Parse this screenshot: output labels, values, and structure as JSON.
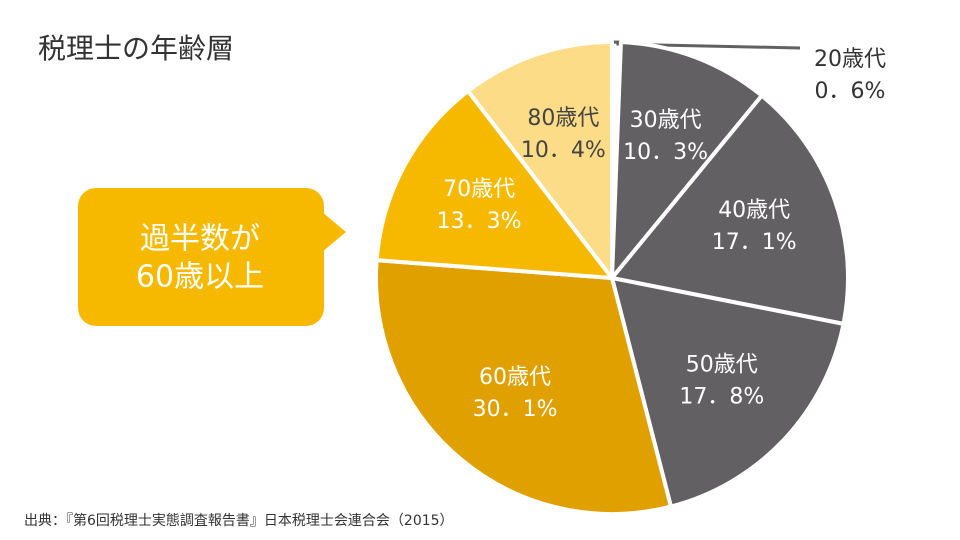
{
  "chart_data": {
    "type": "pie",
    "title": "税理士の年齢層",
    "categories": [
      "20歳代",
      "30歳代",
      "40歳代",
      "50歳代",
      "60歳代",
      "70歳代",
      "80歳代"
    ],
    "values": [
      0.6,
      10.3,
      17.1,
      17.8,
      30.1,
      13.3,
      10.4
    ],
    "value_labels": [
      "0．6%",
      "10．3%",
      "17．1%",
      "17．8%",
      "30．1%",
      "13．3%",
      "10．4%"
    ],
    "colors": [
      "#ffffff",
      "#636063",
      "#636063",
      "#636063",
      "#e0a100",
      "#f7b900",
      "#fddc87"
    ],
    "callout": [
      "過半数が",
      "60歳以上"
    ],
    "source": "出典：『第6回税理士実態調査報告書』日本税理士会連合会（2015）"
  }
}
